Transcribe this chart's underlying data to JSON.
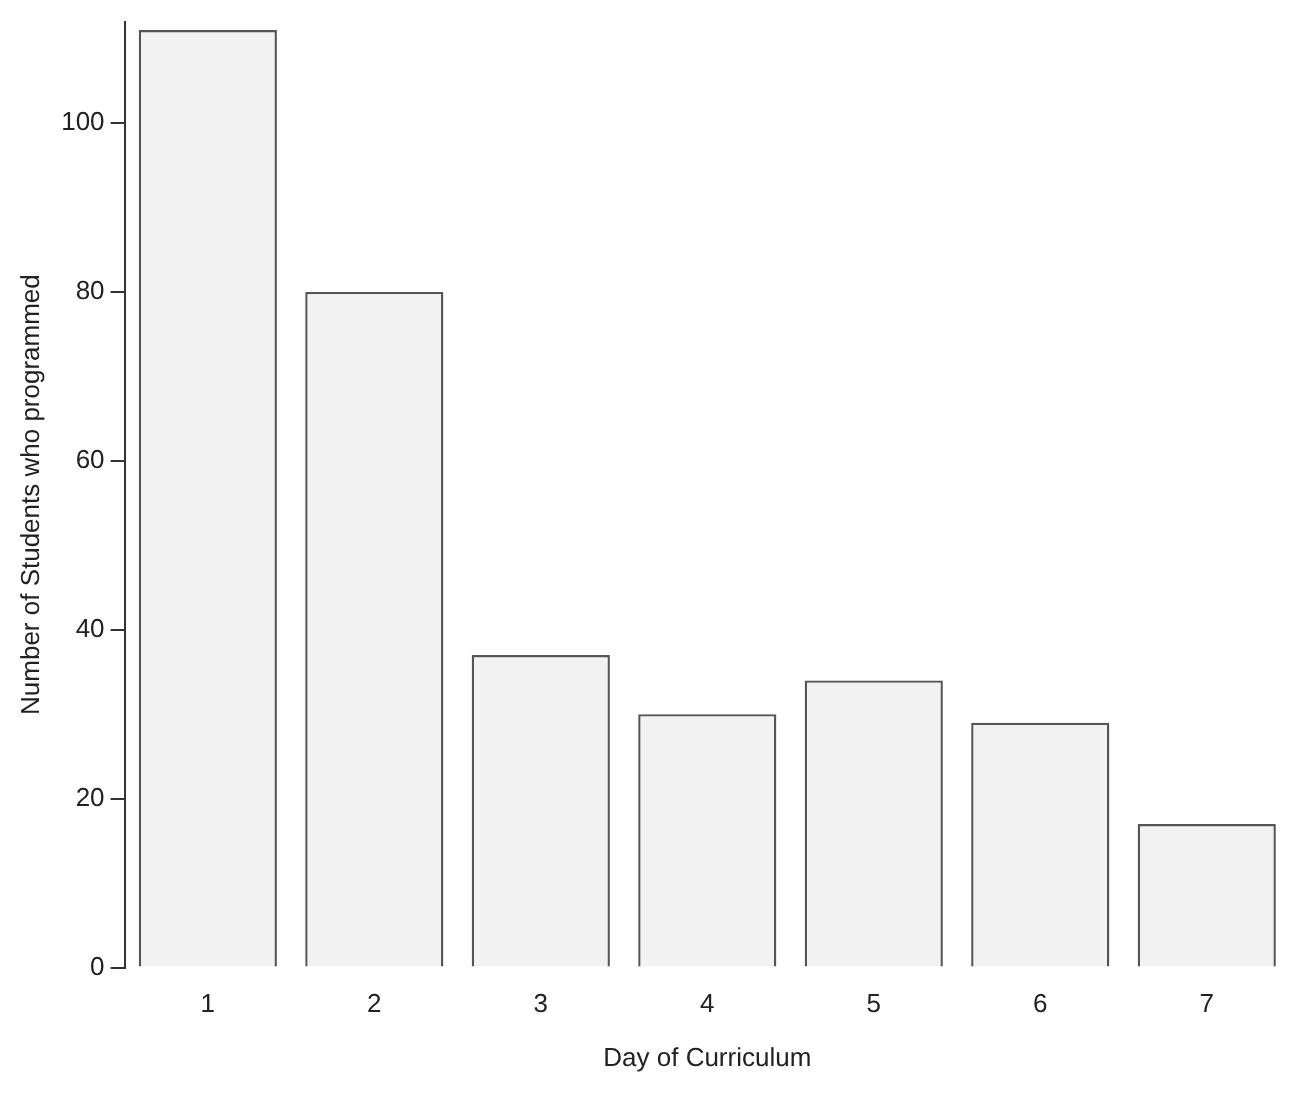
{
  "chart_data": {
    "type": "bar",
    "xlabel": "Day of Curriculum",
    "ylabel": "Number of Students who programmed",
    "categories": [
      "1",
      "2",
      "3",
      "4",
      "5",
      "6",
      "7"
    ],
    "values": [
      111,
      80,
      37,
      30,
      34,
      29,
      17
    ],
    "color": "#f2f2f2",
    "ylim": [
      0,
      112
    ],
    "yticks": [
      0,
      20,
      40,
      60,
      80,
      100
    ],
    "grid": false,
    "legend": false
  }
}
